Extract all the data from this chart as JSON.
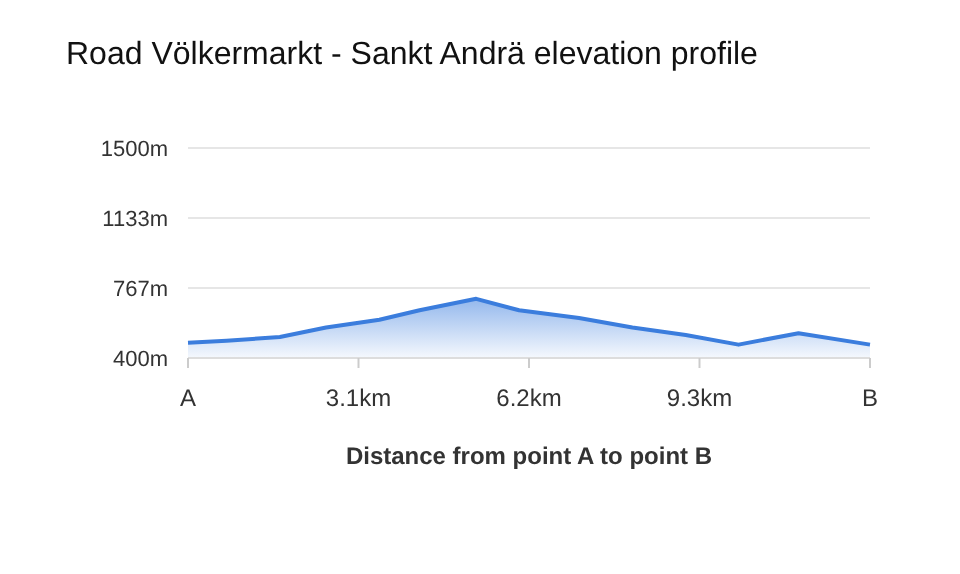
{
  "chart_data": {
    "type": "area",
    "title": "Road Völkermarkt - Sankt Andrä elevation profile",
    "xlabel": "Distance from point A to point B",
    "x": [
      0,
      0.7,
      1.67,
      2.51,
      3.48,
      4.21,
      5.24,
      6.02,
      7.11,
      8.08,
      9.05,
      10.01,
      11.1,
      12.4
    ],
    "series": [
      {
        "color": "#3b7ddd",
        "values": [
          480,
          490,
          510,
          560,
          600,
          650,
          710,
          650,
          610,
          560,
          520,
          470,
          530,
          470
        ]
      }
    ],
    "xlim": [
      0,
      12.4
    ],
    "xticks": [
      {
        "value": 0,
        "label": "A"
      },
      {
        "value": 3.1,
        "label": "3.1km"
      },
      {
        "value": 6.2,
        "label": "6.2km"
      },
      {
        "value": 9.3,
        "label": "9.3km"
      },
      {
        "value": 12.4,
        "label": "B"
      }
    ],
    "ylim": [
      400,
      1500
    ],
    "yticks": [
      {
        "value": 400,
        "label": "400m"
      },
      {
        "value": 767,
        "label": "767m"
      },
      {
        "value": 1133,
        "label": "1133m"
      },
      {
        "value": 1500,
        "label": "1500m"
      }
    ],
    "grid": "y"
  }
}
